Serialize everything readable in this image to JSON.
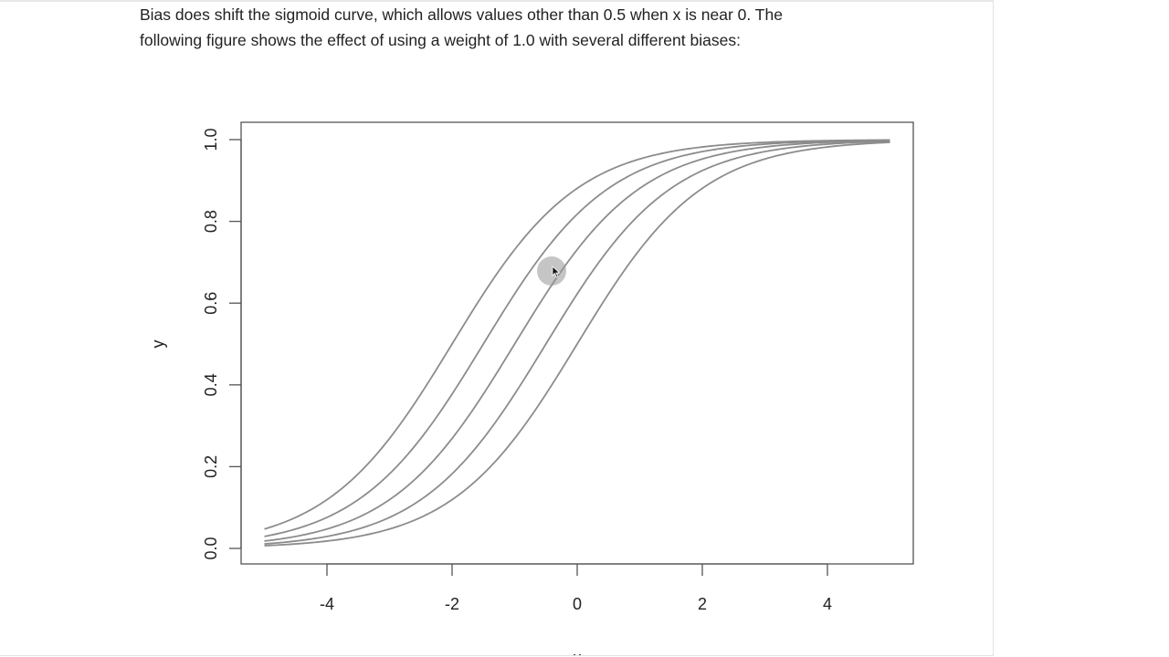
{
  "text": {
    "line1": "Bias does shift the sigmoid curve, which allows values other than 0.5 when x is near 0. The",
    "line2": "following figure shows the effect of using a weight of 1.0 with several different biases:"
  },
  "colors": {
    "curve": "#8c8c8c",
    "axis": "#555555",
    "text": "#222222"
  },
  "icons": {
    "cursor": "mouse-pointer-icon"
  },
  "chart_data": {
    "type": "line",
    "title": "",
    "xlabel": "x",
    "ylabel": "y",
    "xlim": [
      -5,
      5
    ],
    "ylim": [
      0,
      1
    ],
    "x_ticks": [
      -4,
      -2,
      0,
      2,
      4
    ],
    "y_ticks": [
      0.0,
      0.2,
      0.4,
      0.6,
      0.8,
      1.0
    ],
    "x_tick_labels": [
      "-4",
      "-2",
      "0",
      "2",
      "4"
    ],
    "y_tick_labels": [
      "0.0",
      "0.2",
      "0.4",
      "0.6",
      "0.8",
      "1.0"
    ],
    "function": "y = 1 / (1 + exp(-(weight * x + bias)))",
    "weight": 1.0,
    "biases": [
      2.0,
      1.5,
      1.0,
      0.5,
      0.0
    ],
    "grid": false,
    "legend": "none"
  }
}
